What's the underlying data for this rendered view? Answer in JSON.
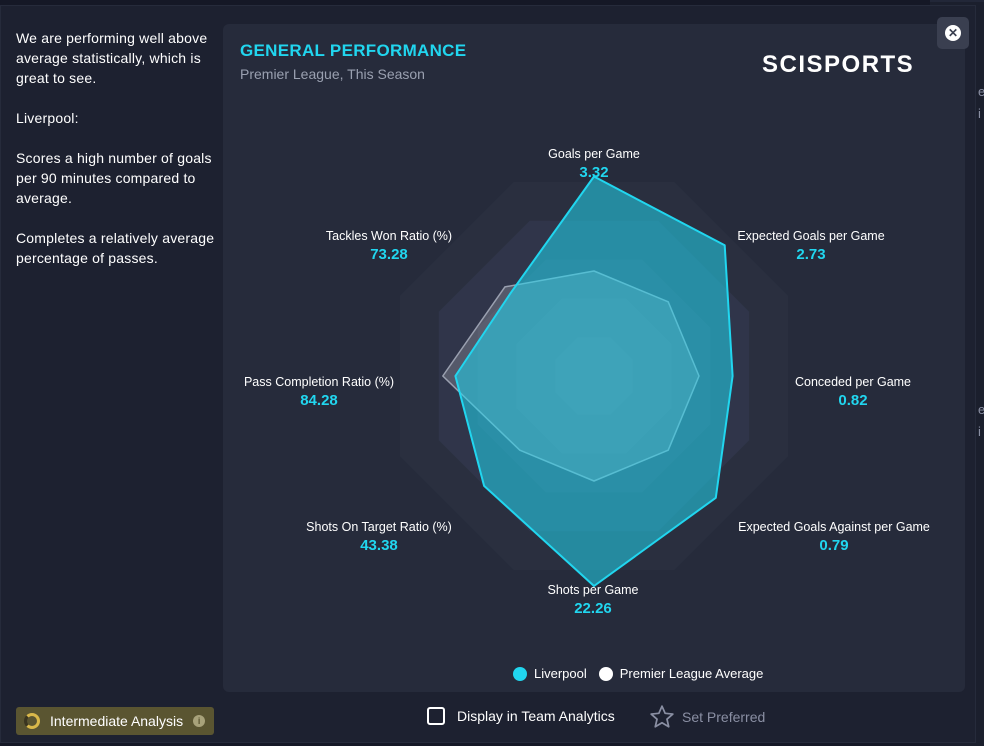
{
  "summary": {
    "para1": "We are performing well above average statistically, which is great to see.",
    "para2": "Liverpool:",
    "para3": "Scores a high number of goals per 90 minutes compared to average.",
    "para4": "Completes a relatively average percentage of passes."
  },
  "panel": {
    "title": "GENERAL PERFORMANCE",
    "subtitle": "Premier League, This Season",
    "logo": "SCISPORTS"
  },
  "chart_data": {
    "type": "radar",
    "axes": [
      {
        "label": "Goals per Game",
        "value": "3.32"
      },
      {
        "label": "Expected Goals per Game",
        "value": "2.73"
      },
      {
        "label": "Conceded per Game",
        "value": "0.82"
      },
      {
        "label": "Expected Goals Against per Game",
        "value": "0.79"
      },
      {
        "label": "Shots per Game",
        "value": "22.26"
      },
      {
        "label": "Shots On Target Ratio (%)",
        "value": "43.38"
      },
      {
        "label": "Pass Completion Ratio (%)",
        "value": "84.28"
      },
      {
        "label": "Tackles Won Ratio (%)",
        "value": "73.28"
      }
    ],
    "series": [
      {
        "name": "Liverpool",
        "color": "#21d6ef",
        "levels": [
          0.95,
          0.88,
          0.66,
          0.82,
          1.0,
          0.74,
          0.66,
          0.56
        ]
      },
      {
        "name": "Premier League Average",
        "color": "#ffffff",
        "levels": [
          0.5,
          0.5,
          0.5,
          0.5,
          0.5,
          0.5,
          0.72,
          0.6
        ]
      }
    ]
  },
  "legend": {
    "item1": "Liverpool",
    "item2": "Premier League Average"
  },
  "footer": {
    "analysis_label": "Intermediate Analysis",
    "display_label": "Display in Team Analytics",
    "preferred_label": "Set Preferred"
  },
  "colors": {
    "accent": "#21d6ef",
    "panel": "#262b3b",
    "badge": "#5a5531"
  }
}
